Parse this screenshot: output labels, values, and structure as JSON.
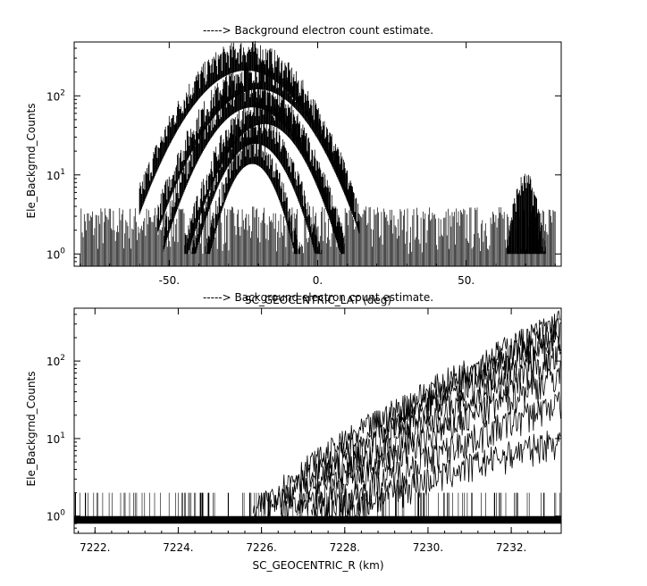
{
  "chart_data": [
    {
      "type": "line",
      "title": "-----> Background electron count estimate.",
      "xlabel": "SC_GEOCENTRIC_LAT (deg)",
      "ylabel": "Ele_Backgrnd_Counts",
      "xlim": [
        -82,
        82
      ],
      "ylim": [
        0.7,
        480
      ],
      "y_scale": "log",
      "x_ticks": [
        -50,
        0,
        50
      ],
      "x_tick_labels": [
        "-50.",
        "0.",
        "50."
      ],
      "y_ticks": [
        1,
        10,
        100
      ],
      "y_tick_labels": [
        "10^0",
        "10^1",
        "10^2"
      ],
      "grid": false,
      "legend": "none",
      "noise_floor": [
        1,
        4
      ],
      "x_start": -80,
      "x_end": 80,
      "series": [
        {
          "peak_lat": -24,
          "peak_count": 380,
          "half_width": 36
        },
        {
          "peak_lat": -20,
          "peak_count": 220,
          "half_width": 34
        },
        {
          "peak_lat": -22,
          "peak_count": 130,
          "half_width": 30
        },
        {
          "peak_lat": -18,
          "peak_count": 80,
          "half_width": 27
        },
        {
          "peak_lat": -21,
          "peak_count": 45,
          "half_width": 23
        },
        {
          "peak_lat": -22,
          "peak_count": 25,
          "half_width": 18
        }
      ],
      "secondary_bump": {
        "peak_lat": 70,
        "peak_count": 9,
        "half_width": 8
      }
    },
    {
      "type": "line",
      "title": "-----> Background electron count estimate.",
      "xlabel": "SC_GEOCENTRIC_R (km)",
      "ylabel": "Ele_Backgrnd_Counts",
      "xlim": [
        7221.5,
        7233.2
      ],
      "ylim": [
        0.6,
        480
      ],
      "y_scale": "log",
      "x_ticks": [
        7222,
        7224,
        7226,
        7228,
        7230,
        7232
      ],
      "x_tick_labels": [
        "7222.",
        "7224.",
        "7226.",
        "7228.",
        "7230.",
        "7232."
      ],
      "y_ticks": [
        1,
        10,
        100
      ],
      "y_tick_labels": [
        "10^0",
        "10^1",
        "10^2"
      ],
      "grid": false,
      "legend": "none",
      "onset_r": 7225.8,
      "series": [
        {
          "end_count": 340
        },
        {
          "end_count": 260
        },
        {
          "end_count": 200
        },
        {
          "end_count": 120
        },
        {
          "end_count": 70
        },
        {
          "end_count": 30
        },
        {
          "end_count": 10
        }
      ]
    }
  ]
}
